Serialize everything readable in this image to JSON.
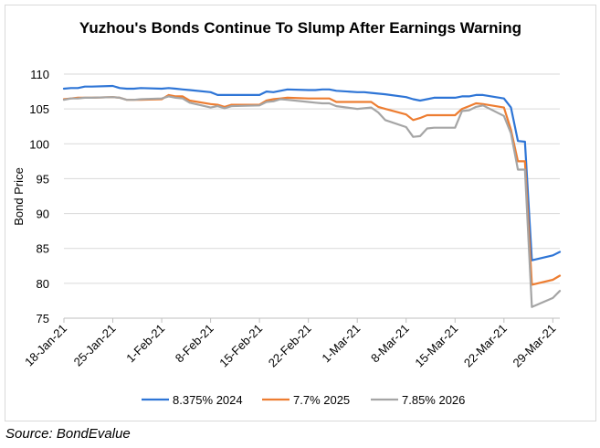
{
  "chart_data": {
    "type": "line",
    "title": "Yuzhou's Bonds Continue To Slump After Earnings Warning",
    "xlabel": "",
    "ylabel": "Bond Price",
    "ylim": [
      75,
      110
    ],
    "yticks": [
      75,
      80,
      85,
      90,
      95,
      100,
      105,
      110
    ],
    "grid": "horizontal",
    "legend_position": "bottom",
    "x_tick_labels": [
      "18-Jan-21",
      "25-Jan-21",
      "1-Feb-21",
      "8-Feb-21",
      "15-Feb-21",
      "22-Feb-21",
      "1-Mar-21",
      "8-Mar-21",
      "15-Mar-21",
      "22-Mar-21",
      "29-Mar-21"
    ],
    "x_tick_days": [
      0,
      7,
      14,
      21,
      28,
      35,
      42,
      49,
      56,
      63,
      70
    ],
    "x_start_date": "2021-01-18",
    "x_end_date": "2021-03-30",
    "series": [
      {
        "name": "8.375% 2024",
        "color": "#2e75d6",
        "x": [
          "2021-01-18",
          "2021-01-19",
          "2021-01-20",
          "2021-01-21",
          "2021-01-22",
          "2021-01-25",
          "2021-01-26",
          "2021-01-27",
          "2021-01-28",
          "2021-01-29",
          "2021-02-01",
          "2021-02-02",
          "2021-02-03",
          "2021-02-04",
          "2021-02-05",
          "2021-02-08",
          "2021-02-09",
          "2021-02-10",
          "2021-02-11",
          "2021-02-15",
          "2021-02-16",
          "2021-02-17",
          "2021-02-18",
          "2021-02-19",
          "2021-02-22",
          "2021-02-23",
          "2021-02-24",
          "2021-02-25",
          "2021-02-26",
          "2021-03-01",
          "2021-03-02",
          "2021-03-03",
          "2021-03-04",
          "2021-03-05",
          "2021-03-08",
          "2021-03-09",
          "2021-03-10",
          "2021-03-11",
          "2021-03-12",
          "2021-03-15",
          "2021-03-16",
          "2021-03-17",
          "2021-03-18",
          "2021-03-19",
          "2021-03-22",
          "2021-03-23",
          "2021-03-24",
          "2021-03-25",
          "2021-03-26",
          "2021-03-29",
          "2021-03-30"
        ],
        "y": [
          107.9,
          108.0,
          108.0,
          108.2,
          108.2,
          108.3,
          108.0,
          107.9,
          107.9,
          108.0,
          107.9,
          108.0,
          107.9,
          107.8,
          107.7,
          107.4,
          107.0,
          107.0,
          107.0,
          107.0,
          107.5,
          107.4,
          107.6,
          107.8,
          107.7,
          107.7,
          107.8,
          107.8,
          107.6,
          107.4,
          107.4,
          107.3,
          107.2,
          107.1,
          106.7,
          106.4,
          106.2,
          106.4,
          106.6,
          106.6,
          106.8,
          106.8,
          107.0,
          107.0,
          106.5,
          105.2,
          100.4,
          100.3,
          83.3,
          84.0,
          84.5
        ]
      },
      {
        "name": "7.7% 2025",
        "color": "#ed7d31",
        "x": [
          "2021-01-18",
          "2021-01-19",
          "2021-01-20",
          "2021-01-21",
          "2021-01-22",
          "2021-01-25",
          "2021-01-26",
          "2021-01-27",
          "2021-01-28",
          "2021-01-29",
          "2021-02-01",
          "2021-02-02",
          "2021-02-03",
          "2021-02-04",
          "2021-02-05",
          "2021-02-08",
          "2021-02-09",
          "2021-02-10",
          "2021-02-11",
          "2021-02-15",
          "2021-02-16",
          "2021-02-17",
          "2021-02-18",
          "2021-02-19",
          "2021-02-22",
          "2021-02-23",
          "2021-02-24",
          "2021-02-25",
          "2021-02-26",
          "2021-03-01",
          "2021-03-02",
          "2021-03-03",
          "2021-03-04",
          "2021-03-05",
          "2021-03-08",
          "2021-03-09",
          "2021-03-10",
          "2021-03-11",
          "2021-03-12",
          "2021-03-15",
          "2021-03-16",
          "2021-03-17",
          "2021-03-18",
          "2021-03-19",
          "2021-03-22",
          "2021-03-23",
          "2021-03-24",
          "2021-03-25",
          "2021-03-26",
          "2021-03-29",
          "2021-03-30"
        ],
        "y": [
          106.4,
          106.5,
          106.6,
          106.6,
          106.6,
          106.7,
          106.6,
          106.3,
          106.3,
          106.3,
          106.4,
          107.0,
          106.8,
          106.8,
          106.2,
          105.7,
          105.6,
          105.3,
          105.6,
          105.6,
          106.2,
          106.4,
          106.5,
          106.6,
          106.5,
          106.5,
          106.5,
          106.5,
          106.0,
          106.0,
          106.0,
          106.0,
          105.3,
          105.0,
          104.2,
          103.4,
          103.7,
          104.1,
          104.1,
          104.1,
          105.0,
          105.4,
          105.8,
          105.7,
          105.2,
          102.0,
          97.5,
          97.5,
          79.8,
          80.5,
          81.1
        ]
      },
      {
        "name": "7.85% 2026",
        "color": "#a5a5a5",
        "x": [
          "2021-01-18",
          "2021-01-19",
          "2021-01-20",
          "2021-01-21",
          "2021-01-22",
          "2021-01-25",
          "2021-01-26",
          "2021-01-27",
          "2021-01-28",
          "2021-01-29",
          "2021-02-01",
          "2021-02-02",
          "2021-02-03",
          "2021-02-04",
          "2021-02-05",
          "2021-02-08",
          "2021-02-09",
          "2021-02-10",
          "2021-02-11",
          "2021-02-15",
          "2021-02-16",
          "2021-02-17",
          "2021-02-18",
          "2021-02-19",
          "2021-02-22",
          "2021-02-23",
          "2021-02-24",
          "2021-02-25",
          "2021-02-26",
          "2021-03-01",
          "2021-03-02",
          "2021-03-03",
          "2021-03-04",
          "2021-03-05",
          "2021-03-08",
          "2021-03-09",
          "2021-03-10",
          "2021-03-11",
          "2021-03-12",
          "2021-03-15",
          "2021-03-16",
          "2021-03-17",
          "2021-03-18",
          "2021-03-19",
          "2021-03-22",
          "2021-03-23",
          "2021-03-24",
          "2021-03-25",
          "2021-03-26",
          "2021-03-29",
          "2021-03-30"
        ],
        "y": [
          106.3,
          106.5,
          106.5,
          106.6,
          106.6,
          106.7,
          106.6,
          106.3,
          106.3,
          106.4,
          106.5,
          106.8,
          106.6,
          106.5,
          105.9,
          105.2,
          105.4,
          105.1,
          105.4,
          105.5,
          106.0,
          106.1,
          106.4,
          106.3,
          106.0,
          105.9,
          105.8,
          105.8,
          105.4,
          105.0,
          105.1,
          105.2,
          104.5,
          103.4,
          102.4,
          101.0,
          101.1,
          102.2,
          102.3,
          102.3,
          104.7,
          104.8,
          105.3,
          105.5,
          104.0,
          101.5,
          96.3,
          96.3,
          76.6,
          77.9,
          78.9
        ]
      }
    ]
  },
  "source": "Source: BondEvalue"
}
